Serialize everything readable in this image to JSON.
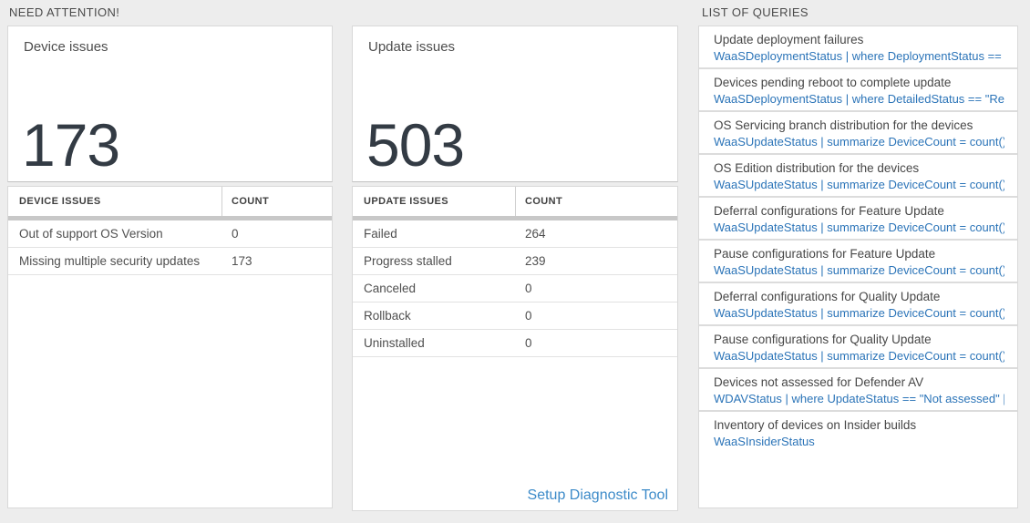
{
  "colors": {
    "background": "#ededed",
    "query_blue": "#2b74b8",
    "link_blue": "#3d8bc9",
    "big_number": "#333b44",
    "thick_bar": "#c8c8c8"
  },
  "need_attention": {
    "header": "NEED ATTENTION!",
    "device_card": {
      "title": "Device issues",
      "count": "173"
    },
    "update_card": {
      "title": "Update issues",
      "count": "503"
    },
    "device_table": {
      "columns": [
        "DEVICE ISSUES",
        "COUNT"
      ],
      "rows": [
        {
          "label": "Out of support OS Version",
          "count": "0"
        },
        {
          "label": "Missing multiple security updates",
          "count": "173"
        }
      ]
    },
    "update_table": {
      "columns": [
        "UPDATE ISSUES",
        "COUNT"
      ],
      "rows": [
        {
          "label": "Failed",
          "count": "264"
        },
        {
          "label": "Progress stalled",
          "count": "239"
        },
        {
          "label": "Canceled",
          "count": "0"
        },
        {
          "label": "Rollback",
          "count": "0"
        },
        {
          "label": "Uninstalled",
          "count": "0"
        }
      ]
    },
    "setup_link": "Setup Diagnostic Tool"
  },
  "queries": {
    "header": "LIST OF QUERIES",
    "items": [
      {
        "title": "Update deployment failures",
        "query": "WaaSDeploymentStatus | where DeploymentStatus == \"Failed\" |..."
      },
      {
        "title": "Devices pending reboot to complete update",
        "query": "WaaSDeploymentStatus | where DetailedStatus == \"Reboot pend..."
      },
      {
        "title": "OS Servicing branch distribution for the devices",
        "query": "WaaSUpdateStatus | summarize DeviceCount = count() by OSSer..."
      },
      {
        "title": "OS Edition distribution for the devices",
        "query": "WaaSUpdateStatus | summarize DeviceCount = count() by OSEdit..."
      },
      {
        "title": "Deferral configurations for Feature Update",
        "query": "WaaSUpdateStatus | summarize DeviceCount = count() by Featur..."
      },
      {
        "title": "Pause configurations for Feature Update",
        "query": "WaaSUpdateStatus | summarize DeviceCount = count() by Featur..."
      },
      {
        "title": "Deferral configurations for Quality Update",
        "query": "WaaSUpdateStatus | summarize DeviceCount = count() by Qualit..."
      },
      {
        "title": "Pause configurations for Quality Update",
        "query": "WaaSUpdateStatus | summarize DeviceCount = count() by Qualit..."
      },
      {
        "title": "Devices not assessed for Defender AV",
        "query": "WDAVStatus | where UpdateStatus == \"Not assessed\" | render ta..."
      },
      {
        "title": "Inventory of devices on Insider builds",
        "query": "WaaSInsiderStatus"
      }
    ]
  }
}
